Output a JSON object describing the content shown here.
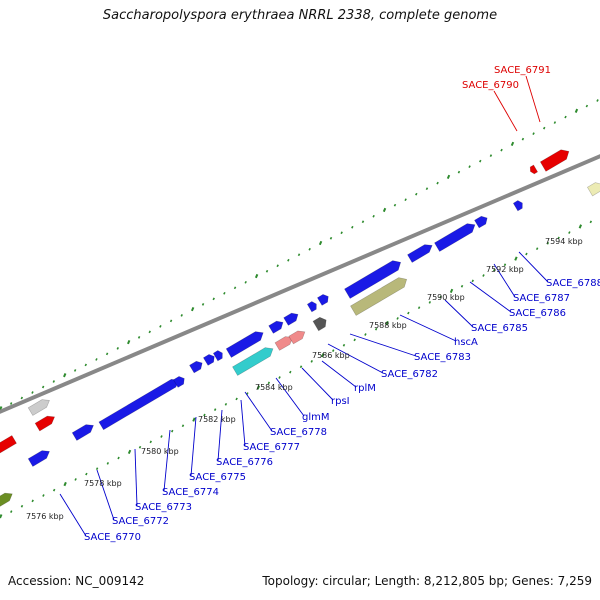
{
  "title": "Saccharopolyspora erythraea NRRL 2338, complete genome",
  "footer": {
    "accession": "Accession: NC_009142",
    "summary": "Topology: circular; Length: 8,212,805 bp; Genes: 7,259"
  },
  "colors": {
    "gene_blue": "#1a1ae6",
    "gene_red": "#e60000",
    "gene_olive": "#b8b87a",
    "gene_cyan": "#33cccc",
    "gene_pink": "#f08a8a",
    "gene_gray": "#555555",
    "gene_lightgray": "#cccccc",
    "gene_yellow": "#ecebb4",
    "gene_green": "#6b8e23",
    "backbone": "#888888",
    "tick_green": "#2e8b2e",
    "label_blue": "#0000cc",
    "label_red": "#dd0000"
  },
  "tick_labels": [
    "7576 kbp",
    "7578 kbp",
    "7580 kbp",
    "7582 kbp",
    "7584 kbp",
    "7586 kbp",
    "7588 kbp",
    "7590 kbp",
    "7592 kbp",
    "7594 kbp"
  ],
  "gene_labels": [
    "SACE_6770",
    "SACE_6772",
    "SACE_6773",
    "SACE_6774",
    "SACE_6775",
    "SACE_6776",
    "SACE_6777",
    "SACE_6778",
    "glmM",
    "rpsI",
    "rplM",
    "SACE_6782",
    "SACE_6783",
    "hscA",
    "SACE_6785",
    "SACE_6786",
    "SACE_6787",
    "SACE_6788"
  ],
  "top_labels": [
    "SACE_6790",
    "SACE_6791"
  ]
}
